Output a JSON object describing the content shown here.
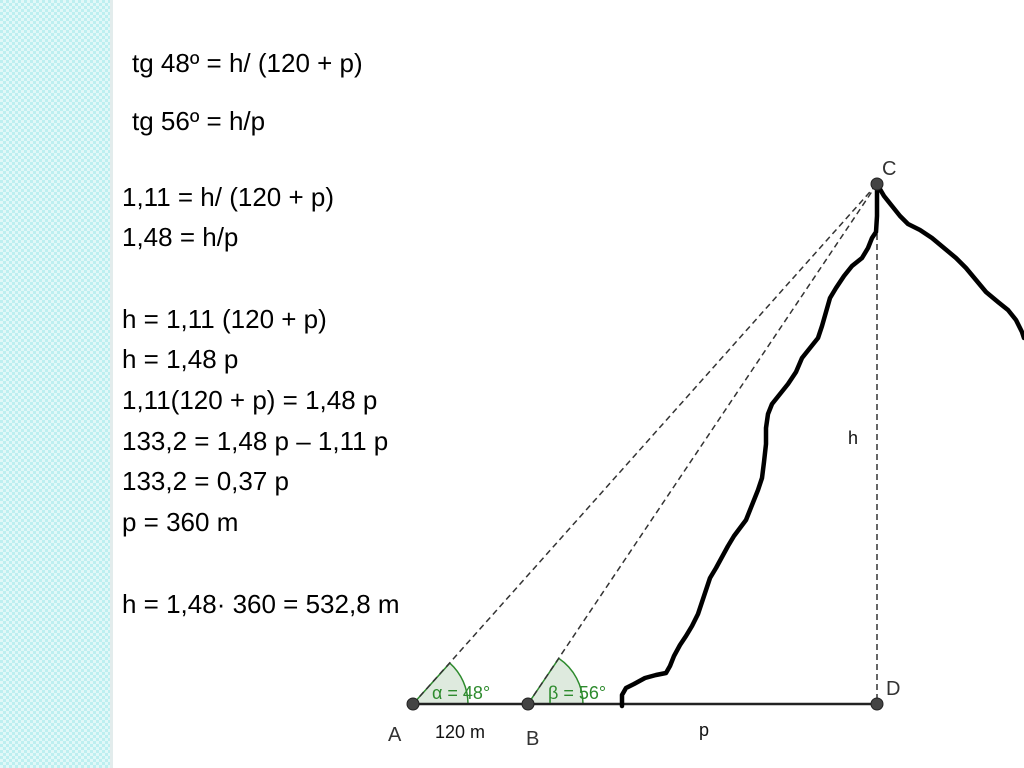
{
  "tangents": {
    "alpha": "tg 48º = h/ (120 + p)",
    "beta": "tg 56º = h/p"
  },
  "substitution": [
    "1,11 = h/ (120 + p)",
    "1,48 = h/p"
  ],
  "solving": [
    "h = 1,11 (120 + p)",
    "h = 1,48 p",
    "1,11(120 + p) = 1,48 p",
    "133,2 = 1,48 p – 1,11 p",
    "133,2 = 0,37 p",
    "p = 360 m"
  ],
  "result": "h = 1,48· 360 = 532,8 m",
  "diagram": {
    "vertices": {
      "A": "A",
      "B": "B",
      "C": "C",
      "D": "D"
    },
    "segment_labels": {
      "AB": "120 m",
      "BD": "p",
      "CD": "h"
    },
    "angles": {
      "alpha": "α = 48°",
      "beta": "β = 56°"
    }
  },
  "colors": {
    "angle": "#2e8b2e",
    "sidebar": "#bdeff0"
  }
}
